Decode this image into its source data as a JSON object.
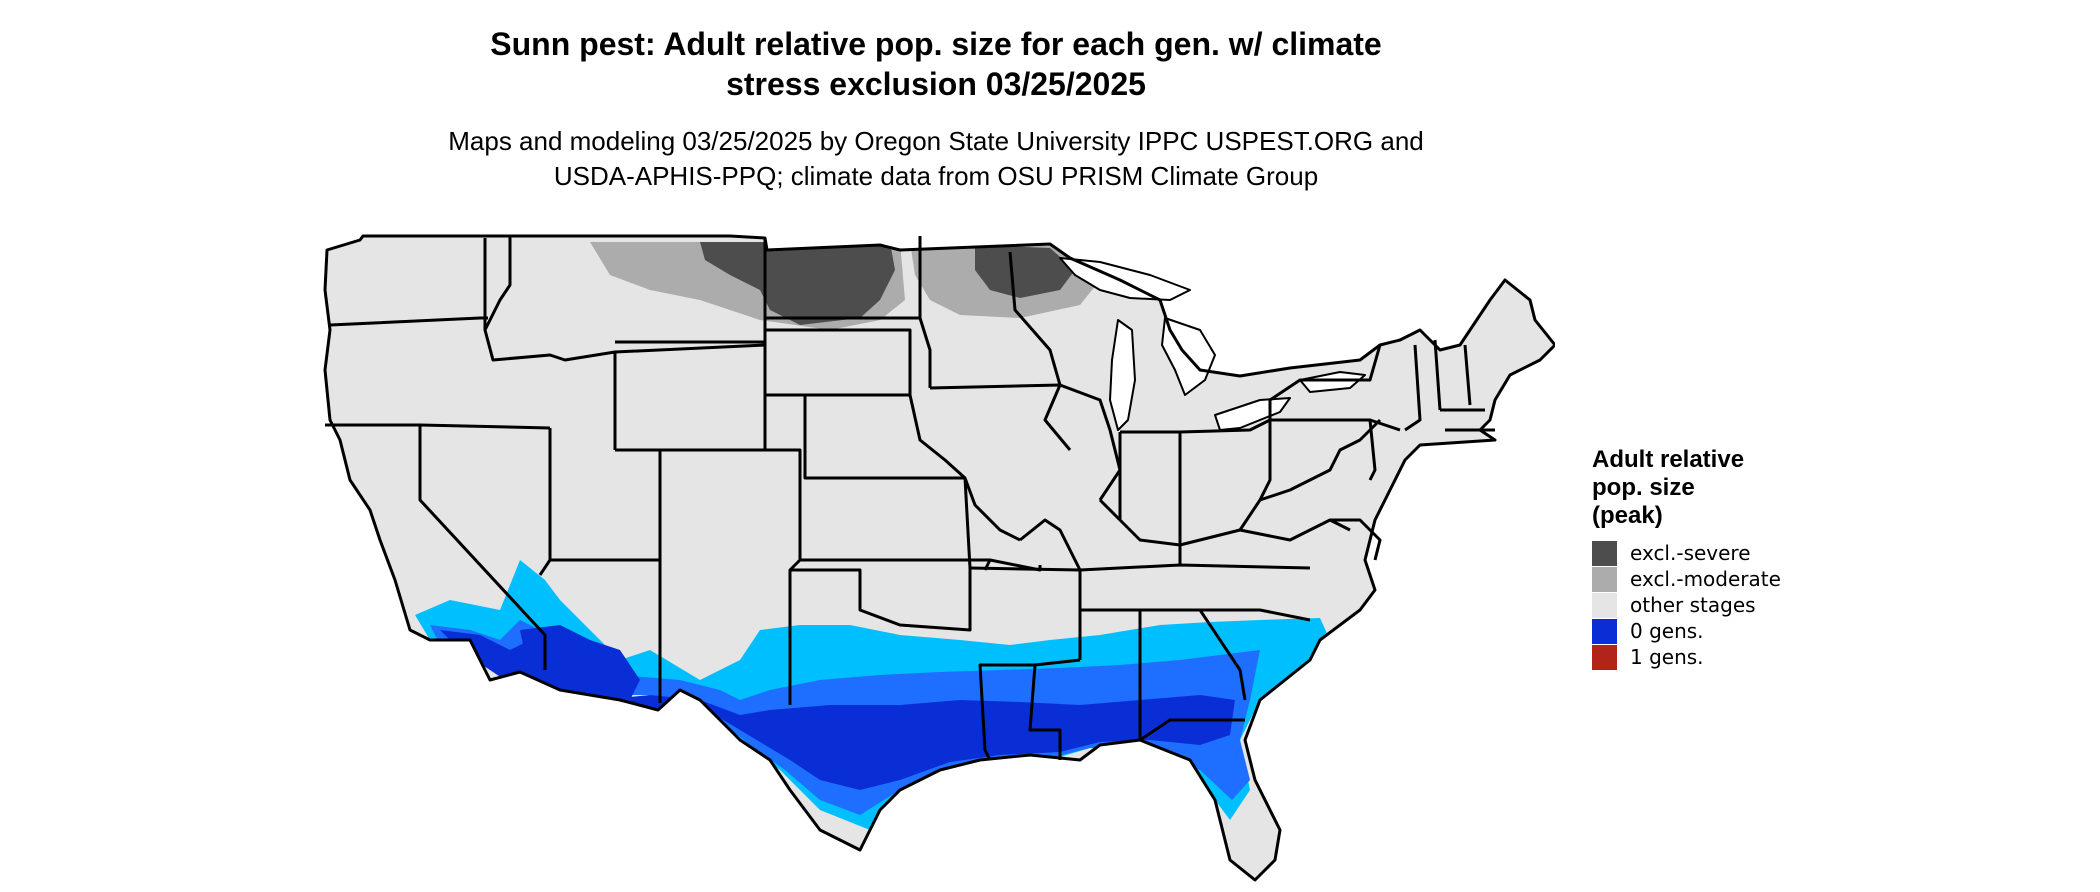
{
  "title": {
    "line1": "Sunn pest: Adult relative pop. size for each gen. w/ climate",
    "line2": "stress exclusion 03/25/2025"
  },
  "subtitle": {
    "line1": "Maps and modeling 03/25/2025 by Oregon State University IPPC USPEST.ORG and",
    "line2": "USDA-APHIS-PPQ; climate data from OSU PRISM Climate Group"
  },
  "legend": {
    "title_line1": "Adult relative",
    "title_line2": "pop. size",
    "title_line3": "(peak)",
    "items": [
      {
        "label": "excl.-severe",
        "color": "#4d4d4d"
      },
      {
        "label": "excl.-moderate",
        "color": "#acacac"
      },
      {
        "label": "other stages",
        "color": "#e5e5e5"
      },
      {
        "label": "0 gens.",
        "color": "#0a2ed6"
      },
      {
        "label": "1 gens.",
        "color": "#b2231a"
      }
    ]
  },
  "map_colors": {
    "base": "#e5e5e5",
    "excl_severe": "#4d4d4d",
    "excl_moderate": "#acacac",
    "light_blue": "#00bfff",
    "mid_blue": "#1e6fff",
    "dark_blue": "#0a2ed6",
    "border": "#000000"
  }
}
